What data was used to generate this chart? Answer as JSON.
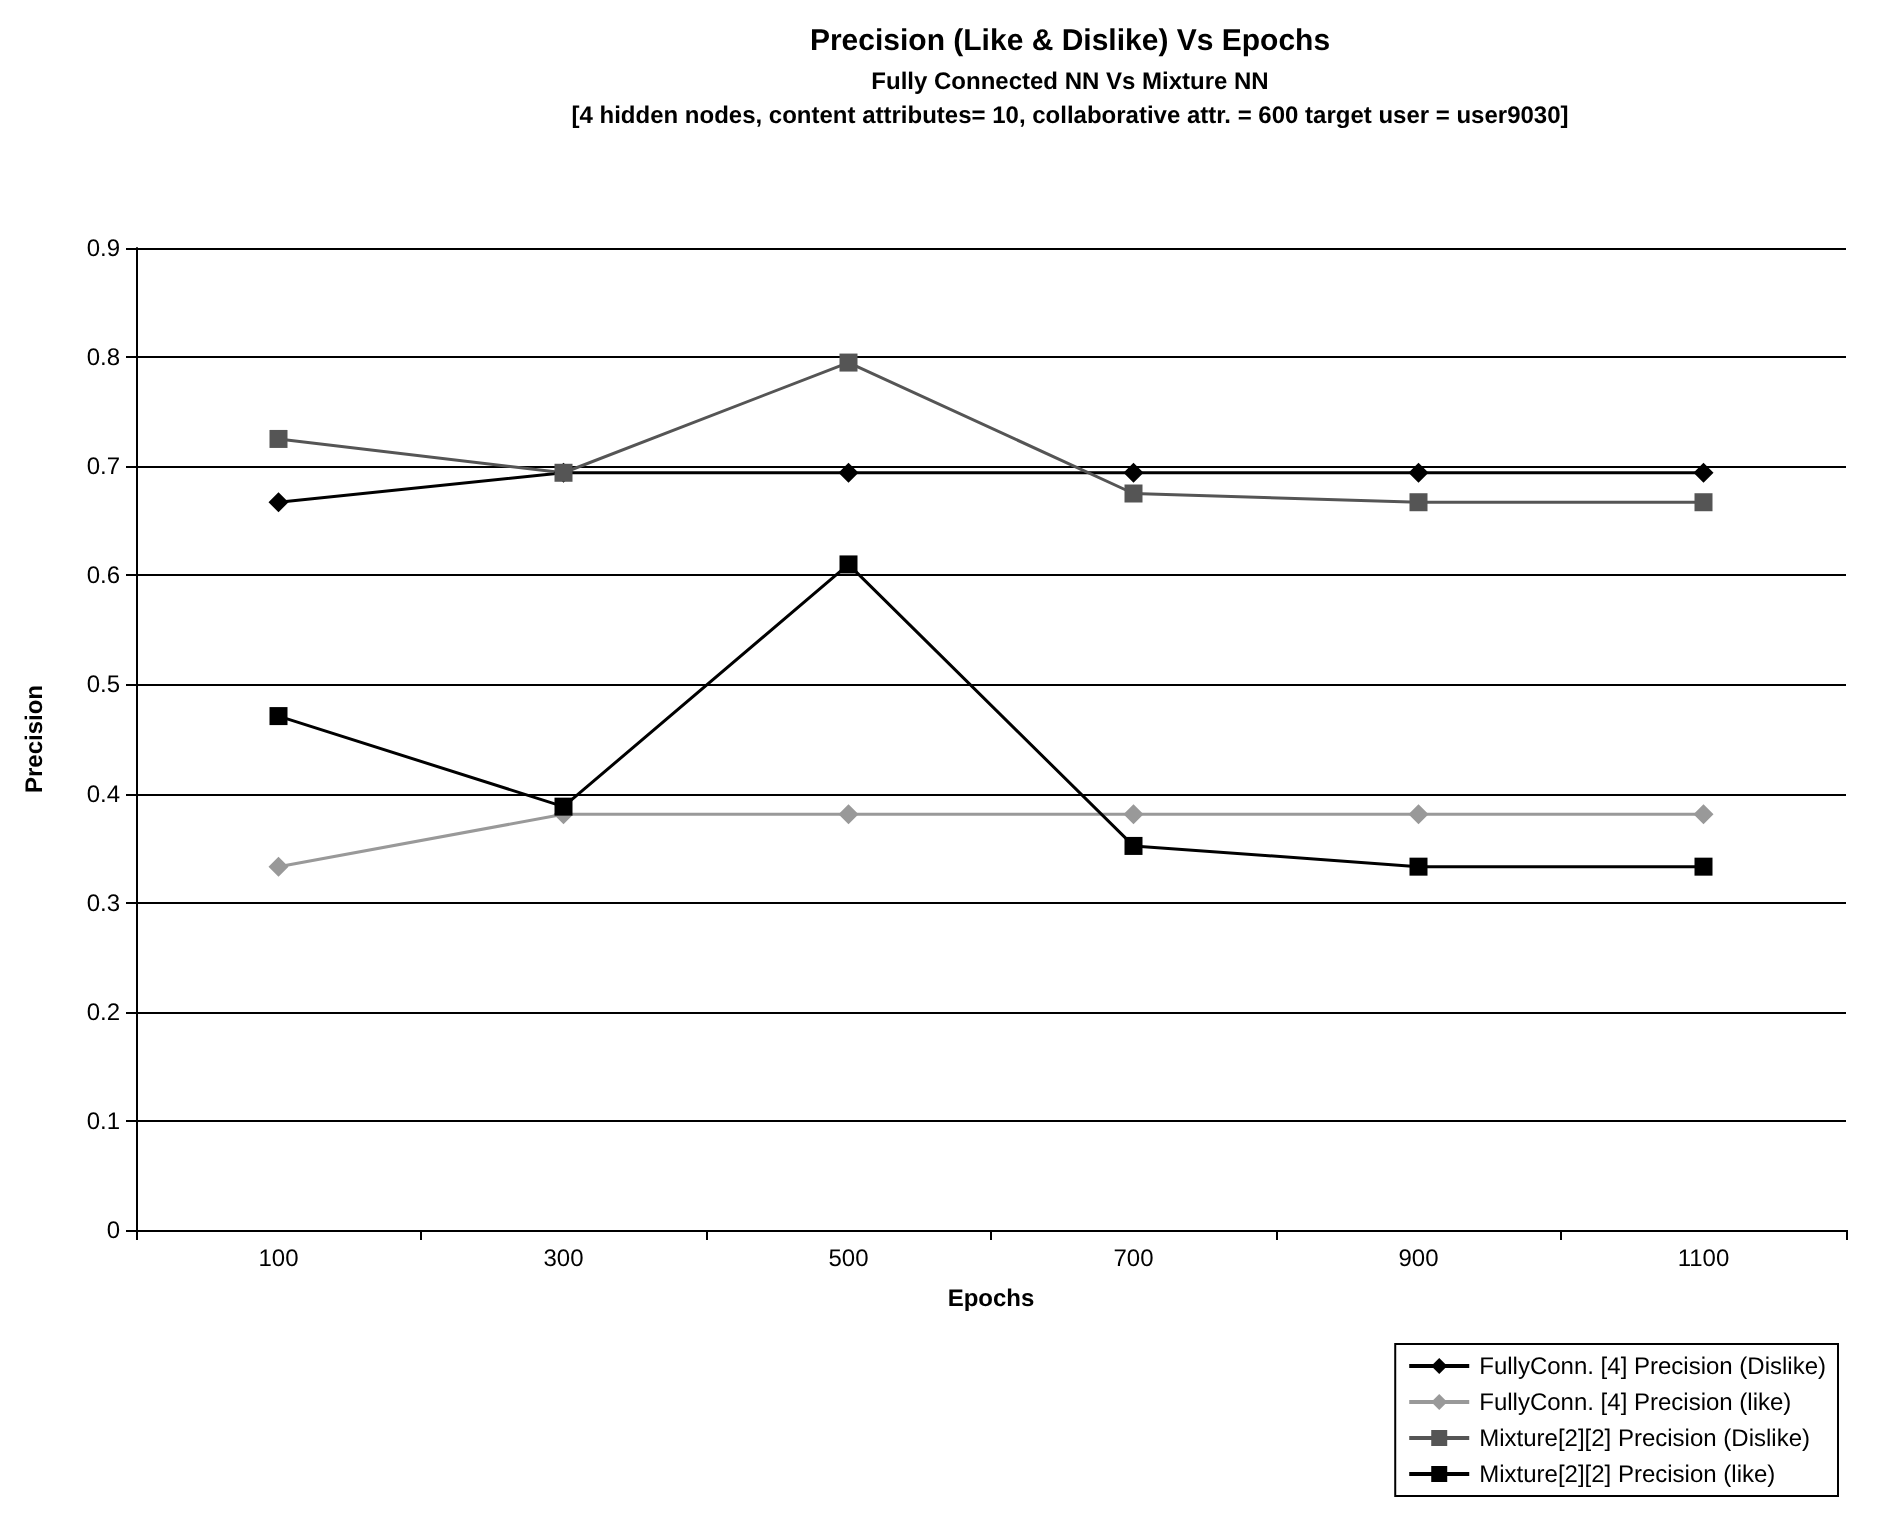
{
  "chart_data": {
    "type": "line",
    "title": "Precision (Like & Dislike) Vs Epochs",
    "subtitle": "Fully Connected NN Vs Mixture NN\n[4 hidden nodes, content attributes= 10, collaborative attr. = 600 target user = user9030]",
    "xlabel": "Epochs",
    "ylabel": "Precision",
    "categories": [
      "100",
      "300",
      "500",
      "700",
      "900",
      "1100"
    ],
    "series": [
      {
        "name": "FullyConn. [4] Precision (Dislike)",
        "color": "#000000",
        "marker": "diamond",
        "values": [
          0.667,
          0.694,
          0.694,
          0.694,
          0.694,
          0.694
        ]
      },
      {
        "name": "FullyConn. [4] Precision (like)",
        "color": "#999999",
        "marker": "diamond",
        "values": [
          0.333,
          0.381,
          0.381,
          0.381,
          0.381,
          0.381
        ]
      },
      {
        "name": "Mixture[2][2] Precision (Dislike)",
        "color": "#555555",
        "marker": "square",
        "values": [
          0.725,
          0.694,
          0.795,
          0.675,
          0.667,
          0.667
        ]
      },
      {
        "name": "Mixture[2][2] Precision (like)",
        "color": "#000000",
        "marker": "square",
        "values": [
          0.471,
          0.388,
          0.61,
          0.352,
          0.333,
          0.333
        ]
      }
    ],
    "ylim": [
      0,
      0.9
    ],
    "yticks": [
      0,
      0.1,
      0.2,
      0.3,
      0.4,
      0.5,
      0.6,
      0.7,
      0.8,
      0.9
    ],
    "grid": "y",
    "legend": "bottom right",
    "line_style": "solid"
  }
}
